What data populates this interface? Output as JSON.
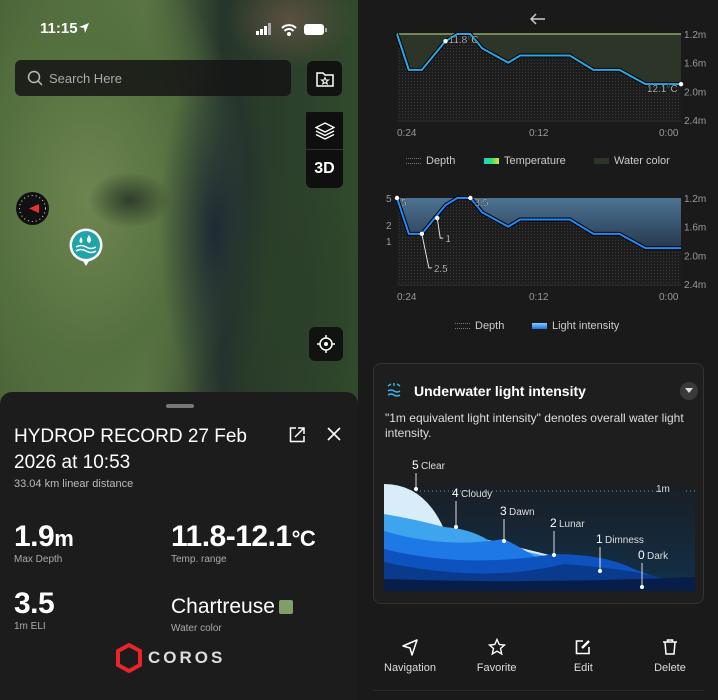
{
  "status_bar": {
    "time": "11:15"
  },
  "map": {
    "search_placeholder": "Search Here",
    "view_3d_label": "3D"
  },
  "record": {
    "title": "HYDROP RECORD 27 Feb 2026 at 10:53",
    "distance": "33.04 km linear distance",
    "max_depth_value": "1.9",
    "max_depth_unit": "m",
    "max_depth_label": "Max Depth",
    "temp_range_value": "11.8-12.1",
    "temp_range_unit": "°C",
    "temp_range_label": "Temp. range",
    "eli_value": "3.5",
    "eli_label": "1m ELI",
    "water_color_value": "Chartreuse",
    "water_color_swatch": "#7f9e6a",
    "water_color_label": "Water color",
    "brand": "COROS"
  },
  "chart_data": [
    {
      "type": "line",
      "x_label_ticks": [
        "0:24",
        "0:12",
        "0:00"
      ],
      "y_right_ticks": [
        "1.2m",
        "1.6m",
        "2.0m",
        "2.4m"
      ],
      "ylim": [
        1.2,
        2.4
      ],
      "xlim": [
        24,
        0
      ],
      "x_minutes": [
        24,
        23,
        21.9,
        19.9,
        18.9,
        17.8,
        16.8,
        14.6,
        13.6,
        9.4,
        7.4,
        5.2,
        3,
        0
      ],
      "depth_m": [
        1.2,
        1.7,
        1.7,
        1.3,
        1.2,
        1.2,
        1.4,
        1.6,
        1.5,
        1.5,
        1.7,
        1.7,
        1.9,
        1.9
      ],
      "annotations": [
        {
          "x": 19.9,
          "label": "11.8°C"
        },
        {
          "x": 0,
          "label": "12.1°C"
        }
      ],
      "legend": [
        "Depth",
        "Temperature",
        "Water color"
      ],
      "colors": {
        "line": "#29a8e8",
        "fill": "#2c3527",
        "top": "#8ea86a"
      }
    },
    {
      "type": "line",
      "x_label_ticks": [
        "0:24",
        "0:12",
        "0:00"
      ],
      "y_right_ticks": [
        "1.2m",
        "1.6m",
        "2.0m",
        "2.4m"
      ],
      "y_left_ticks": [
        "5",
        "2",
        "1"
      ],
      "ylim": [
        1.2,
        2.4
      ],
      "xlim": [
        24,
        0
      ],
      "x_minutes": [
        24,
        23,
        21.9,
        19.9,
        18.9,
        17.8,
        16.8,
        14.6,
        13.6,
        9.4,
        7.4,
        5.2,
        3,
        0
      ],
      "depth_m": [
        1.2,
        1.7,
        1.7,
        1.3,
        1.2,
        1.2,
        1.4,
        1.6,
        1.5,
        1.5,
        1.7,
        1.7,
        1.9,
        1.9
      ],
      "annotations": [
        {
          "x": 24,
          "label": "5"
        },
        {
          "x": 21.9,
          "label": "2.5"
        },
        {
          "x": 20.6,
          "label": "1"
        },
        {
          "x": 17.8,
          "label": "3.5"
        }
      ],
      "legend": [
        "Depth",
        "Light intensity"
      ],
      "colors": {
        "line": "#1e8cff",
        "fill": "#3a5a78"
      }
    }
  ],
  "light_card": {
    "title": "Underwater light intensity",
    "description": "\"1m equivalent light intensity\" denotes overall water light intensity.",
    "depth_marker": "1m",
    "levels": [
      {
        "n": "5",
        "name": "Clear"
      },
      {
        "n": "4",
        "name": "Cloudy"
      },
      {
        "n": "3",
        "name": "Dawn"
      },
      {
        "n": "2",
        "name": "Lunar"
      },
      {
        "n": "1",
        "name": "Dimness"
      },
      {
        "n": "0",
        "name": "Dark"
      }
    ]
  },
  "actions": [
    {
      "label": "Navigation",
      "icon": "navigation-icon"
    },
    {
      "label": "Favorite",
      "icon": "star-icon"
    },
    {
      "label": "Edit",
      "icon": "edit-icon"
    },
    {
      "label": "Delete",
      "icon": "trash-icon"
    }
  ]
}
